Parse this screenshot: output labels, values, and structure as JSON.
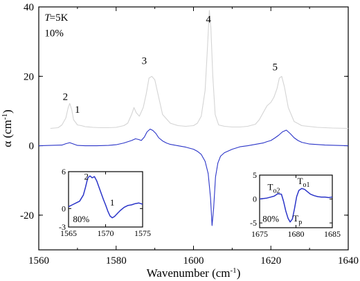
{
  "chart_data": {
    "type": "line",
    "main": {
      "xlabel": "Wavenumber (cm",
      "xlabel_sup": "-1",
      "xlabel_end": ")",
      "ylabel": "α (cm",
      "ylabel_sup": "-1",
      "ylabel_end": ")",
      "xlim": [
        1560,
        1640
      ],
      "ylim": [
        -30,
        40
      ],
      "x_ticks": [
        1560,
        1580,
        1600,
        1620,
        1640
      ],
      "y_ticks": [
        -20,
        0,
        20,
        40
      ],
      "grid": false,
      "series": [
        {
          "color": "#d4d4d4",
          "x": [
            1563,
            1565,
            1566,
            1567,
            1567.6,
            1568,
            1568.5,
            1569,
            1570,
            1571,
            1572,
            1574,
            1576,
            1578,
            1580,
            1582,
            1583,
            1584,
            1584.6,
            1585.2,
            1586,
            1587,
            1587.8,
            1588.5,
            1589.2,
            1590,
            1591,
            1592,
            1594,
            1596,
            1598,
            1600,
            1601,
            1602,
            1603,
            1603.6,
            1604.1,
            1604.5,
            1605,
            1605.6,
            1606.5,
            1608,
            1610,
            1612,
            1614,
            1616,
            1617,
            1618,
            1619,
            1620,
            1620.8,
            1621.6,
            1622.2,
            1622.8,
            1623.5,
            1624.5,
            1626,
            1628,
            1632,
            1636,
            1640
          ],
          "y": [
            5,
            5.2,
            6,
            8,
            11,
            12.2,
            10.5,
            7.5,
            6,
            5.8,
            5.5,
            5.3,
            5.2,
            5.2,
            5.3,
            5.8,
            6.5,
            9,
            11,
            9.5,
            8.5,
            11,
            15,
            19.5,
            20,
            19,
            14,
            9,
            6.5,
            5.8,
            5.6,
            5.8,
            6.5,
            8.5,
            16,
            28,
            39,
            34,
            20,
            9,
            6,
            5.6,
            5.4,
            5.4,
            5.6,
            6.2,
            7.5,
            9.5,
            11.5,
            12.5,
            14,
            16.5,
            19.5,
            20,
            17,
            11,
            7,
            5.8,
            5.3,
            5.1,
            5
          ]
        },
        {
          "color": "#2a34c8",
          "x": [
            1560,
            1563,
            1566,
            1567,
            1568,
            1569,
            1570,
            1572,
            1575,
            1578,
            1580,
            1582,
            1584,
            1585,
            1585.8,
            1586.5,
            1587.3,
            1588,
            1588.8,
            1589.5,
            1590.3,
            1591,
            1592,
            1593,
            1594,
            1596,
            1598,
            1600,
            1601,
            1602,
            1603,
            1603.8,
            1604.4,
            1604.8,
            1605.2,
            1605.7,
            1606.3,
            1607,
            1608,
            1610,
            1612,
            1614,
            1616,
            1618,
            1619,
            1620,
            1621,
            1622,
            1623,
            1624,
            1625,
            1626,
            1627,
            1628,
            1630,
            1634,
            1640
          ],
          "y": [
            0,
            0.1,
            0.2,
            0.6,
            0.9,
            0.5,
            0.1,
            0,
            0,
            0.1,
            0.3,
            0.8,
            1.5,
            2,
            1.8,
            1.5,
            2.5,
            4,
            4.8,
            4.4,
            3.5,
            2.3,
            1.4,
            0.8,
            0.4,
            0,
            -0.4,
            -1,
            -1.6,
            -2.5,
            -4.5,
            -8,
            -15,
            -23,
            -18,
            -9,
            -5,
            -3,
            -2,
            -1,
            -0.3,
            0,
            0.4,
            0.8,
            1.2,
            1.5,
            2.2,
            3,
            4,
            4.5,
            3.5,
            2.3,
            1.5,
            1,
            0.5,
            0.2,
            0
          ]
        }
      ],
      "annotations": [
        {
          "text": "T",
          "x": 1561.5,
          "y": 36
        },
        {
          "text": "=5K",
          "x": 1562.8,
          "y": 36
        },
        {
          "text": "10%",
          "x": 1561.5,
          "y": 31.5
        },
        {
          "text": "2",
          "x": 1566.2,
          "y": 13.2
        },
        {
          "text": "1",
          "x": 1569.3,
          "y": 9.5
        },
        {
          "text": "3",
          "x": 1586.6,
          "y": 23.5
        },
        {
          "text": "4",
          "x": 1603.2,
          "y": 35.5
        },
        {
          "text": "5",
          "x": 1620.4,
          "y": 21.8
        }
      ]
    },
    "inset_left": {
      "xlim": [
        1565,
        1575
      ],
      "ylim": [
        -3,
        6
      ],
      "x_ticks": [
        1565,
        1570,
        1575
      ],
      "y_ticks": [
        -3,
        0,
        6
      ],
      "color": "#2a34c8",
      "x": [
        1565,
        1565.5,
        1566,
        1566.5,
        1567,
        1567.3,
        1567.6,
        1567.9,
        1568.2,
        1568.5,
        1568.8,
        1569.1,
        1569.4,
        1569.7,
        1570,
        1570.3,
        1570.6,
        1570.9,
        1571.2,
        1571.6,
        1572,
        1572.5,
        1573,
        1573.5,
        1574,
        1574.5,
        1575
      ],
      "y": [
        0.3,
        0.6,
        0.9,
        1.2,
        2.2,
        3.5,
        5,
        5.3,
        5,
        5.2,
        4.5,
        3.5,
        2.5,
        1.5,
        0.6,
        -0.4,
        -1.2,
        -1.5,
        -1.3,
        -0.8,
        -0.3,
        0.2,
        0.5,
        0.6,
        0.8,
        0.9,
        0.7
      ],
      "labels": [
        {
          "text": "2",
          "x": 1567.1,
          "y": 4.7
        },
        {
          "text": "1",
          "x": 1570.6,
          "y": 0.5
        },
        {
          "text": "80%",
          "x": 1565.6,
          "y": -2.2
        }
      ]
    },
    "inset_right": {
      "xlim": [
        1675,
        1685
      ],
      "ylim": [
        -6,
        5
      ],
      "x_ticks": [
        1675,
        1680,
        1685
      ],
      "y_ticks": [
        -5,
        0,
        5
      ],
      "color": "#2a34c8",
      "x": [
        1675,
        1675.5,
        1676,
        1676.5,
        1677,
        1677.5,
        1678,
        1678.3,
        1678.6,
        1678.9,
        1679.2,
        1679.5,
        1679.8,
        1680.1,
        1680.4,
        1680.8,
        1681.2,
        1681.6,
        1682,
        1682.5,
        1683,
        1683.5,
        1684,
        1684.5,
        1685
      ],
      "y": [
        0,
        0.1,
        0.2,
        0.4,
        0.6,
        1.1,
        1,
        -0.5,
        -2.5,
        -4,
        -4.8,
        -4.2,
        -2,
        0.5,
        1.8,
        2.2,
        2,
        1.5,
        1,
        0.7,
        0.5,
        0.4,
        0.4,
        0.3,
        0.4
      ],
      "labels": [
        {
          "text": "T",
          "sub": "o2",
          "x": 1676.1,
          "y": 1.9
        },
        {
          "text": "T",
          "sub": "o1",
          "x": 1680.2,
          "y": 3.1
        },
        {
          "text": "T",
          "sub": "p",
          "x": 1679.6,
          "y": -4.7
        },
        {
          "text": "80%",
          "x": 1675.4,
          "y": -4.8
        }
      ]
    }
  }
}
